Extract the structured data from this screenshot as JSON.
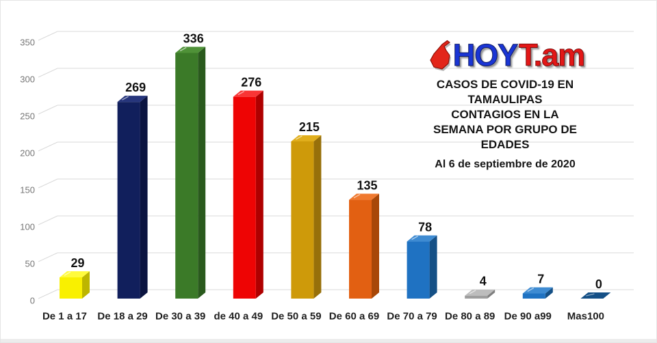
{
  "frame": {
    "background": "#FFFFFF",
    "border_color": "#E4E4E4",
    "bottom_strip_color": "#ECECEC"
  },
  "logo": {
    "icon": "tamaulipas-map",
    "part1": "HOY",
    "part2": "T.am",
    "part1_color": "#1A35D4",
    "part2_color": "#E31717",
    "icon_color": "#E3261A"
  },
  "header": {
    "title_lines": [
      "CASOS DE COVID-19 EN",
      "TAMAULIPAS",
      "CONTAGIOS EN LA",
      "SEMANA POR GRUPO DE",
      "EDADES"
    ],
    "date_line": "Al 6 de septiembre de 2020"
  },
  "chart_data": {
    "type": "bar",
    "projection": "3d",
    "title": "CASOS DE COVID-19 EN TAMAULIPAS - CONTAGIOS EN LA SEMANA POR GRUPO DE EDADES",
    "subtitle": "Al 6 de septiembre de 2020",
    "categories": [
      "De 1 a 17",
      "De 18 a 29",
      "De 30 a 39",
      "de 40 a 49",
      "De 50 a 59",
      "De 60 a 69",
      "De 70 a 79",
      "De 80 a 89",
      "De 90 a99",
      "Mas100"
    ],
    "values": [
      29,
      269,
      336,
      276,
      215,
      135,
      78,
      4,
      7,
      0
    ],
    "bar_colors": [
      {
        "front": "#F9F000",
        "top": "#FFFB3D",
        "side": "#BDB600"
      },
      {
        "front": "#111F5C",
        "top": "#26357C",
        "side": "#0B1440"
      },
      {
        "front": "#3B7A28",
        "top": "#4F9238",
        "side": "#2A5A1D"
      },
      {
        "front": "#EE0404",
        "top": "#F93535",
        "side": "#AF0000"
      },
      {
        "front": "#CE9A0A",
        "top": "#E0AE1C",
        "side": "#97700A"
      },
      {
        "front": "#E26012",
        "top": "#F0792F",
        "side": "#A84708"
      },
      {
        "front": "#1F72C2",
        "top": "#3E8BD2",
        "side": "#155086"
      },
      {
        "front": "#9E9E9E",
        "top": "#BDBDBD",
        "side": "#7F7F7F"
      },
      {
        "front": "#1F72C2",
        "top": "#3E8BD2",
        "side": "#155086"
      },
      {
        "front": "#1F72C2",
        "top": "#2E66A4",
        "side": "#155086"
      }
    ],
    "ylim": [
      0,
      350
    ],
    "yticks": [
      0,
      50,
      100,
      150,
      200,
      250,
      300,
      350
    ],
    "grid": true,
    "gridline_color": "#D9D9D9",
    "axis_label_color": "#757575",
    "value_label_color": "#111111",
    "category_label_color": "#1F1F1F",
    "legend": "none",
    "value_labels_shown": true
  }
}
